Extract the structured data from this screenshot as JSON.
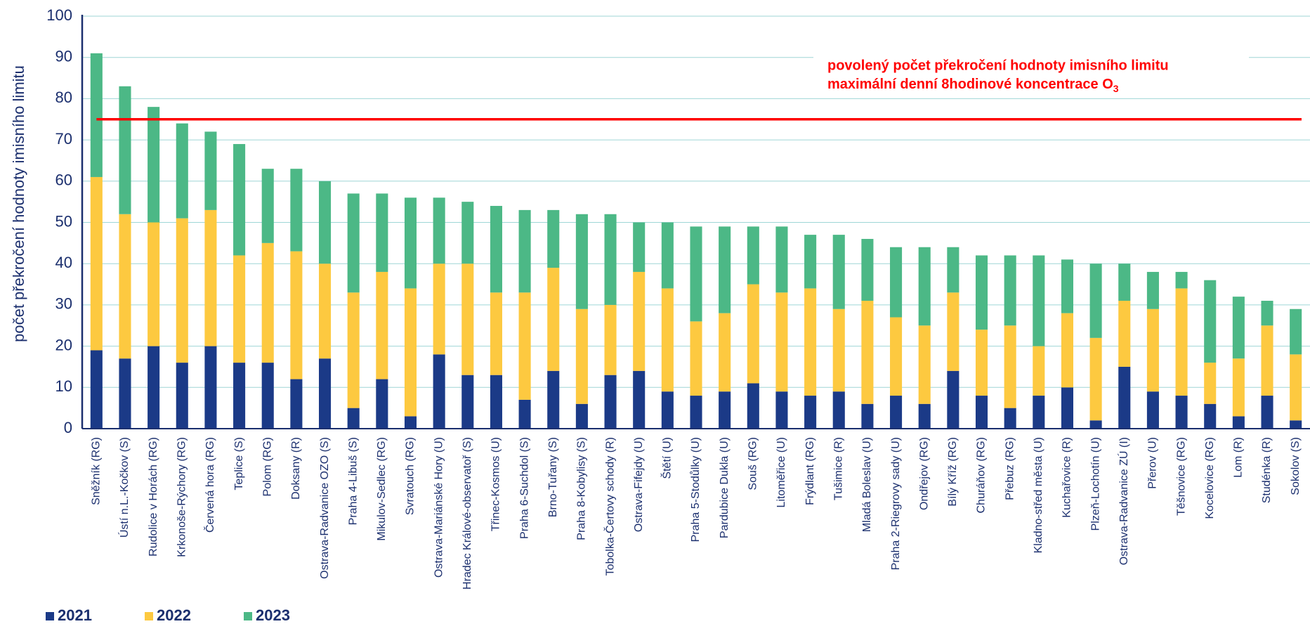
{
  "chart_data": {
    "type": "stacked_bar",
    "y_label": "počet překročení hodnoty imisního limitu",
    "categories": [
      "Sněžník (RG)",
      "Ústí n.L.-Kočkov (S)",
      "Rudolice v Horách (RG)",
      "Krkonoše-Rýchory (RG)",
      "Červená hora (RG)",
      "Teplice  (S)",
      "Polom (RG)",
      "Doksany (R)",
      "Ostrava-Radvanice OZO (S)",
      "Praha 4-Libuš (S)",
      "Mikulov-Sedlec (RG)",
      "Svratouch (RG)",
      "Ostrava-Mariánské Hory (U)",
      "Hradec Králové-observatoř (S)",
      "Třinec-Kosmos (U)",
      "Praha 6-Suchdol (S)",
      "Brno-Tuřany (S)",
      "Praha 8-Kobylisy (S)",
      "Tobolka-Čertovy schody (R)",
      "Ostrava-Fifejdy (U)",
      "Štětí (U)",
      "Praha 5-Stodůlky (U)",
      "Pardubice Dukla (U)",
      "Souš (RG)",
      "Litoměřice (U)",
      "Frýdlant (RG)",
      "Tušimice (R)",
      "Mladá Boleslav (U)",
      "Praha 2-Riegrovy sady (U)",
      "Ondřejov (RG)",
      "Bílý Kříž (RG)",
      "Churáňov (RG)",
      "Přebuz (RG)",
      "Kladno-střed města (U)",
      "Kuchařovice (R)",
      "Plzeň-Lochotín (U)",
      "Ostrava-Radvanice ZÚ (I)",
      "Přerov (U)",
      "Těšnovice (RG)",
      "Kocelovice (RG)",
      "Lom (R)",
      "Studénka (R)",
      "Sokolov (S)"
    ],
    "series": [
      {
        "name": "2021",
        "color": "#1b3a87",
        "values": [
          19,
          17,
          20,
          16,
          20,
          16,
          16,
          12,
          17,
          5,
          12,
          3,
          18,
          13,
          13,
          7,
          14,
          6,
          13,
          14,
          9,
          8,
          9,
          11,
          9,
          8,
          9,
          6,
          8,
          6,
          14,
          8,
          5,
          8,
          10,
          2,
          15,
          9,
          8,
          6,
          3,
          8,
          2
        ]
      },
      {
        "name": "2022",
        "color": "#fdc940",
        "values": [
          42,
          35,
          30,
          35,
          33,
          26,
          29,
          31,
          23,
          28,
          26,
          31,
          22,
          27,
          20,
          26,
          25,
          23,
          17,
          24,
          25,
          18,
          19,
          24,
          24,
          26,
          20,
          25,
          19,
          19,
          19,
          16,
          20,
          12,
          18,
          20,
          16,
          20,
          26,
          10,
          14,
          17,
          16
        ]
      },
      {
        "name": "2023",
        "color": "#4cb886",
        "values": [
          30,
          31,
          28,
          23,
          19,
          27,
          18,
          20,
          20,
          24,
          19,
          22,
          16,
          15,
          21,
          20,
          14,
          23,
          22,
          12,
          16,
          23,
          21,
          14,
          16,
          13,
          18,
          15,
          17,
          19,
          11,
          18,
          17,
          22,
          13,
          18,
          9,
          9,
          4,
          20,
          15,
          6,
          11
        ]
      }
    ],
    "ylim": [
      0,
      100
    ],
    "yticks": [
      0,
      10,
      20,
      30,
      40,
      50,
      60,
      70,
      80,
      90,
      100
    ],
    "grid": true,
    "threshold": 75,
    "threshold_color": "#ff0000",
    "annotation": {
      "line1": "povolený počet překročení hodnoty imisního limitu",
      "line2": "maximální denní 8hodinové koncentrace O",
      "subscript": "3"
    }
  }
}
